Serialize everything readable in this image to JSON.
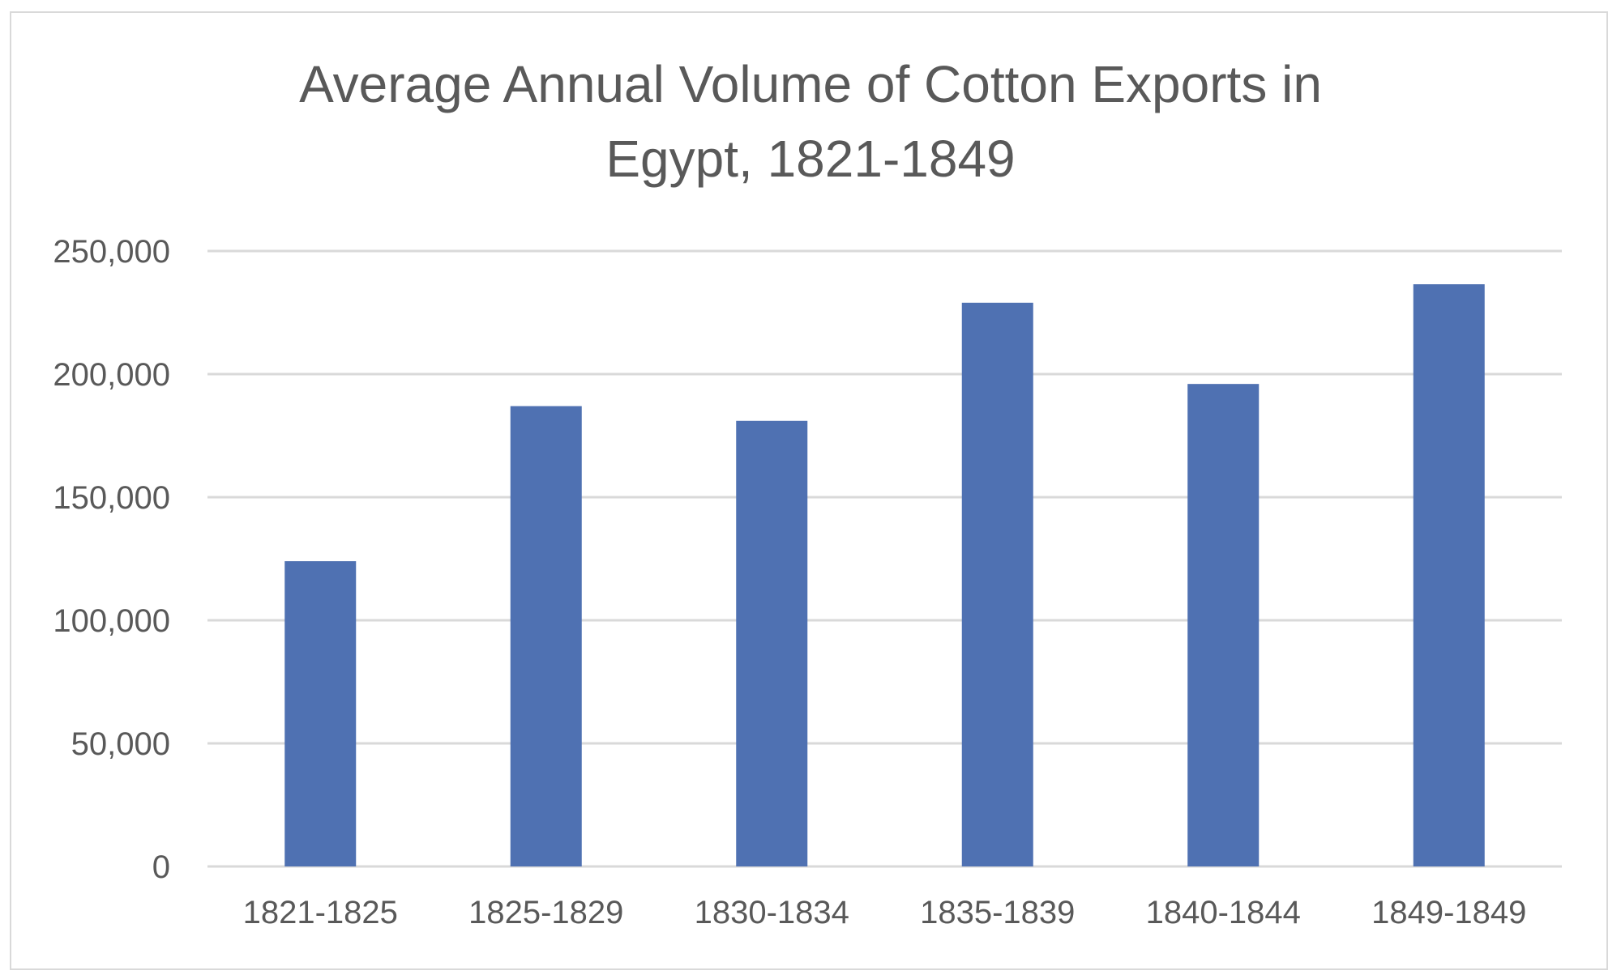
{
  "chart_data": {
    "type": "bar",
    "title_lines": [
      "Average Annual Volume of Cotton Exports in",
      "Egypt, 1821-1849"
    ],
    "categories": [
      "1821-1825",
      "1825-1829",
      "1830-1834",
      "1835-1839",
      "1840-1844",
      "1849-1849"
    ],
    "values": [
      124000,
      187000,
      181000,
      229000,
      196000,
      236500
    ],
    "xlabel": "",
    "ylabel": "",
    "ylim": [
      0,
      250000
    ],
    "yticks": [
      0,
      50000,
      100000,
      150000,
      200000,
      250000
    ],
    "ytick_labels": [
      "0",
      "50,000",
      "100,000",
      "150,000",
      "200,000",
      "250,000"
    ],
    "grid": true,
    "legend": "none",
    "bar_color": "#4f71b2",
    "grid_color": "#d9d9d9"
  }
}
